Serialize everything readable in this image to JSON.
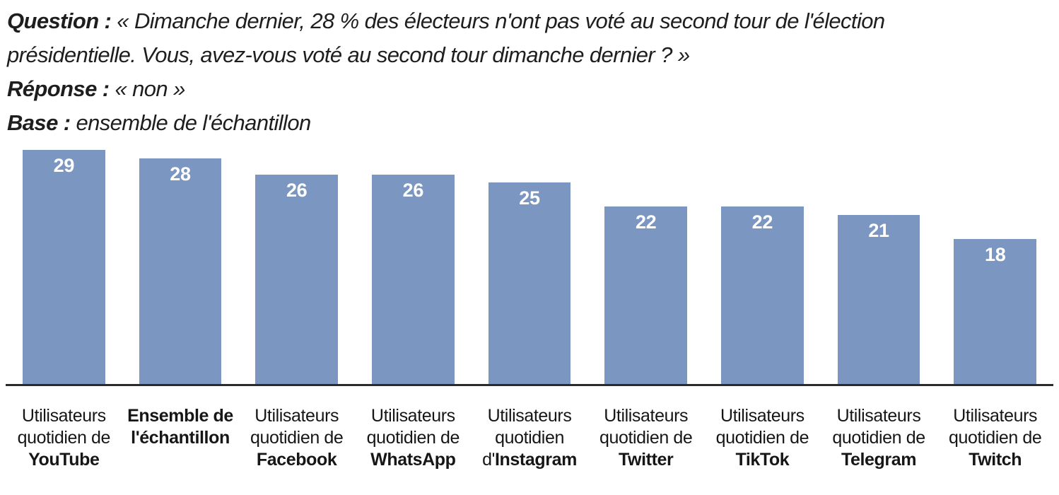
{
  "header": {
    "question_label": "Question :",
    "question_text": "« Dimanche dernier, 28 % des électeurs n'ont pas voté au second tour de l'élection présidentielle. Vous, avez-vous voté au second tour dimanche dernier ? »",
    "reponse_label": "Réponse :",
    "reponse_text": "« non »",
    "base_label": "Base :",
    "base_text": "ensemble de l'échantillon"
  },
  "chart_data": {
    "type": "bar",
    "title": "",
    "xlabel": "",
    "ylabel": "",
    "unit": "%",
    "categories": [
      "Utilisateurs quotidien de YouTube",
      "Ensemble de l'échantillon",
      "Utilisateurs quotidien de Facebook",
      "Utilisateurs quotidien de WhatsApp",
      "Utilisateurs quotidien d'Instagram",
      "Utilisateurs quotidien de Twitter",
      "Utilisateurs quotidien de TikTok",
      "Utilisateurs quotidien de Telegram",
      "Utilisateurs quotidien de Twitch"
    ],
    "values": [
      29,
      28,
      26,
      26,
      25,
      22,
      22,
      21,
      18
    ],
    "ylim": [
      0,
      30
    ],
    "grid": false,
    "legend": false,
    "value_labels_inside_bars": true,
    "bar_color": "#7b97c1",
    "value_label_color": "#ffffff",
    "axis_line_color": "#2b2b2b",
    "x_labels": [
      {
        "lines": [
          [
            {
              "text": "Utilisateurs",
              "bold": false
            }
          ],
          [
            {
              "text": "quotidien de",
              "bold": false
            }
          ],
          [
            {
              "text": "YouTube",
              "bold": true
            }
          ]
        ]
      },
      {
        "lines": [
          [
            {
              "text": "Ensemble de",
              "bold": true
            }
          ],
          [
            {
              "text": "l'échantillon",
              "bold": true
            }
          ]
        ]
      },
      {
        "lines": [
          [
            {
              "text": "Utilisateurs",
              "bold": false
            }
          ],
          [
            {
              "text": "quotidien de",
              "bold": false
            }
          ],
          [
            {
              "text": "Facebook",
              "bold": true
            }
          ]
        ]
      },
      {
        "lines": [
          [
            {
              "text": "Utilisateurs",
              "bold": false
            }
          ],
          [
            {
              "text": "quotidien de",
              "bold": false
            }
          ],
          [
            {
              "text": "WhatsApp",
              "bold": true
            }
          ]
        ]
      },
      {
        "lines": [
          [
            {
              "text": "Utilisateurs",
              "bold": false
            }
          ],
          [
            {
              "text": "quotidien",
              "bold": false
            }
          ],
          [
            {
              "text": "d'",
              "bold": false
            },
            {
              "text": "Instagram",
              "bold": true
            }
          ]
        ]
      },
      {
        "lines": [
          [
            {
              "text": "Utilisateurs",
              "bold": false
            }
          ],
          [
            {
              "text": "quotidien de",
              "bold": false
            }
          ],
          [
            {
              "text": "Twitter",
              "bold": true
            }
          ]
        ]
      },
      {
        "lines": [
          [
            {
              "text": "Utilisateurs",
              "bold": false
            }
          ],
          [
            {
              "text": "quotidien de",
              "bold": false
            }
          ],
          [
            {
              "text": "TikTok",
              "bold": true
            }
          ]
        ]
      },
      {
        "lines": [
          [
            {
              "text": "Utilisateurs",
              "bold": false
            }
          ],
          [
            {
              "text": "quotidien de",
              "bold": false
            }
          ],
          [
            {
              "text": "Telegram",
              "bold": true
            }
          ]
        ]
      },
      {
        "lines": [
          [
            {
              "text": "Utilisateurs",
              "bold": false
            }
          ],
          [
            {
              "text": "quotidien de",
              "bold": false
            }
          ],
          [
            {
              "text": "Twitch",
              "bold": true
            }
          ]
        ]
      }
    ]
  }
}
